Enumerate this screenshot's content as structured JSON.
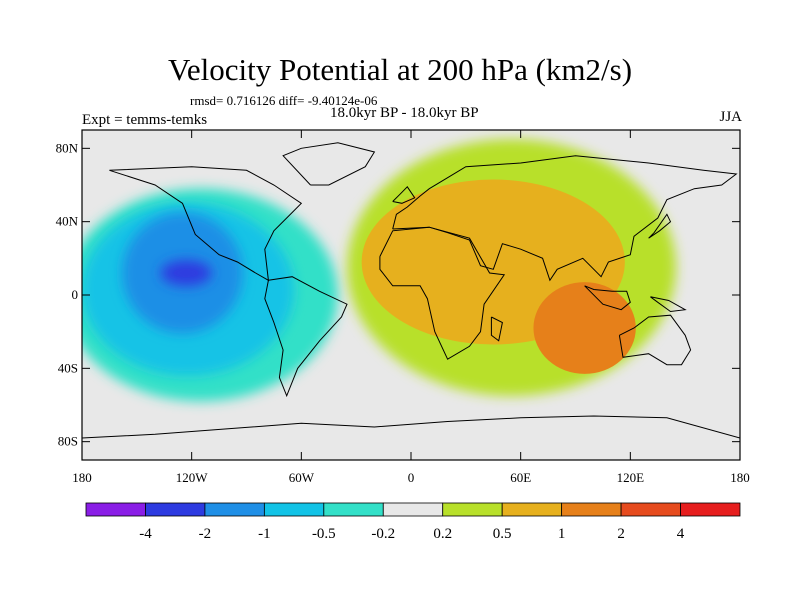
{
  "header": {
    "title": "Velocity Potential at 200 hPa (km2/s)",
    "stats": "rmsd= 0.716126 diff= -9.40124e-06",
    "experiment": "Expt = temms-temks",
    "period": "18.0kyr BP - 18.0kyr BP",
    "season": "JJA"
  },
  "map": {
    "projection": "cylindrical-equidistant",
    "lon_range": [
      -180,
      180
    ],
    "lat_range": [
      -90,
      90
    ],
    "ocean_color": "#e8e8e8",
    "lat_ticks": [
      {
        "value": 80,
        "label": "80N"
      },
      {
        "value": 40,
        "label": "40N"
      },
      {
        "value": 0,
        "label": "0"
      },
      {
        "value": -40,
        "label": "40S"
      },
      {
        "value": -80,
        "label": "80S"
      }
    ],
    "lon_ticks": [
      {
        "value": -180,
        "label": "180"
      },
      {
        "value": -120,
        "label": "120W"
      },
      {
        "value": -60,
        "label": "60W"
      },
      {
        "value": 0,
        "label": "0"
      },
      {
        "value": 60,
        "label": "60E"
      },
      {
        "value": 120,
        "label": "120E"
      },
      {
        "value": 180,
        "label": "180"
      }
    ],
    "fields": [
      {
        "level": "-0.5..-0.2",
        "color": "#33e0c8",
        "center": [
          -115,
          0
        ],
        "extent": [
          75,
          58
        ]
      },
      {
        "level": "-1..-0.5",
        "color": "#12c3e6",
        "center": [
          -122,
          3
        ],
        "extent": [
          58,
          47
        ]
      },
      {
        "level": "-2..-1",
        "color": "#1f8fe6",
        "center": [
          -125,
          12
        ],
        "extent": [
          33,
          33
        ]
      },
      {
        "level": "-4..-2",
        "color": "#2d3be0",
        "center": [
          -123,
          12
        ],
        "extent": [
          14,
          7
        ]
      },
      {
        "level": "0.2..0.5",
        "color": "#b8e02a",
        "center": [
          55,
          15
        ],
        "extent": [
          90,
          70
        ]
      },
      {
        "level": "0.5..1",
        "color": "#e6b01e",
        "center": [
          45,
          18
        ],
        "extent": [
          72,
          45
        ]
      },
      {
        "level": "1..2",
        "color": "#e6801a",
        "center": [
          95,
          -18
        ],
        "extent": [
          28,
          25
        ]
      }
    ]
  },
  "colorbar": {
    "colors": [
      "#8a1ee6",
      "#2d3be0",
      "#1f8fe6",
      "#12c3e6",
      "#33e0c8",
      "#e8e8e8",
      "#b8e02a",
      "#e6b01e",
      "#e6801a",
      "#e64b1e",
      "#e61e1e"
    ],
    "labels": [
      "-4",
      "-2",
      "-1",
      "-0.5",
      "-0.2",
      "0.2",
      "0.5",
      "1",
      "2",
      "4"
    ]
  }
}
